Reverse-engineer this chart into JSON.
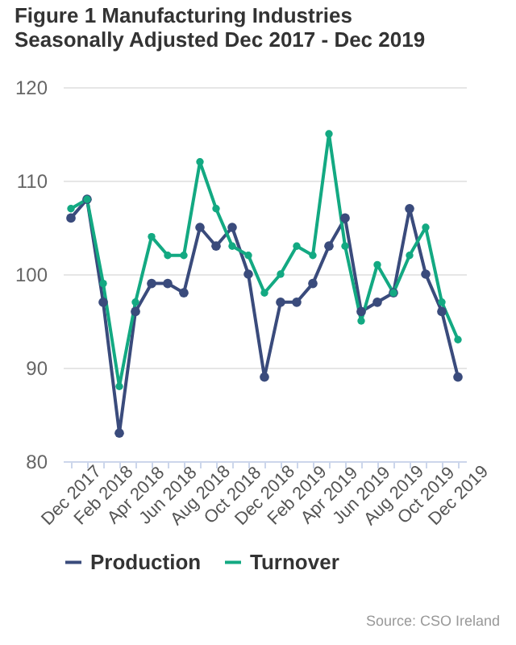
{
  "chart_data": {
    "type": "line",
    "title": "Figure 1 Manufacturing Industries Seasonally Adjusted Dec 2017 - Dec 2019",
    "categories": [
      "Dec 2017",
      null,
      "Feb 2018",
      null,
      "Apr 2018",
      null,
      "Jun 2018",
      null,
      "Aug 2018",
      null,
      "Oct 2018",
      null,
      "Dec 2018",
      null,
      "Feb 2019",
      null,
      "Apr 2019",
      null,
      "Jun 2019",
      null,
      "Aug 2019",
      null,
      "Oct 2019",
      null,
      "Dec 2019"
    ],
    "series": [
      {
        "name": "Production",
        "color": "#3a4b7c",
        "values": [
          106,
          108,
          97,
          83,
          96,
          99,
          99,
          98,
          105,
          103,
          105,
          100,
          89,
          97,
          97,
          99,
          103,
          106,
          96,
          97,
          98,
          107,
          100,
          96,
          89
        ]
      },
      {
        "name": "Turnover",
        "color": "#13a982",
        "values": [
          107,
          108,
          99,
          88,
          97,
          104,
          102,
          102,
          112,
          107,
          103,
          102,
          98,
          100,
          103,
          102,
          115,
          103,
          95,
          101,
          98,
          102,
          105,
          97,
          93
        ]
      }
    ],
    "ylim": [
      80,
      120
    ],
    "yticks": [
      80,
      90,
      100,
      110,
      120
    ],
    "grid": "y",
    "legend": "bottom",
    "marker": "circle",
    "line_style": "solid",
    "annotations": [
      "Source: CSO Ireland"
    ]
  }
}
